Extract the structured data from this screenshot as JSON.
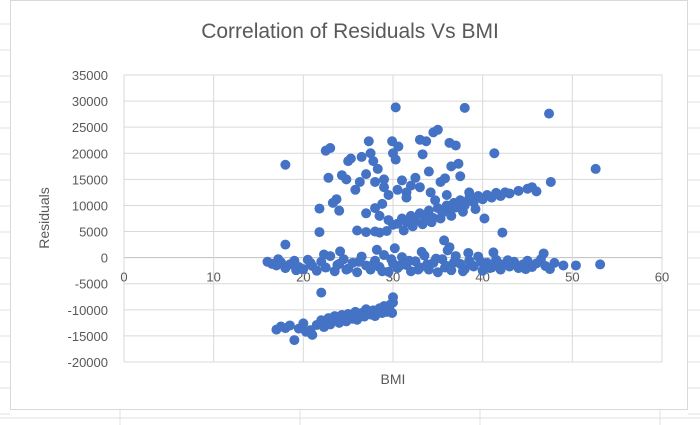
{
  "chart_data": {
    "type": "scatter",
    "title": "Correlation of Residuals Vs BMI",
    "xlabel": "BMI",
    "ylabel": "Residuals",
    "xlim": [
      0,
      60
    ],
    "ylim": [
      -20000,
      35000
    ],
    "x_ticks": [
      "0",
      "10",
      "20",
      "30",
      "40",
      "50",
      "60"
    ],
    "y_ticks": [
      "35000",
      "30000",
      "25000",
      "20000",
      "15000",
      "10000",
      "5000",
      "0",
      "-5000",
      "-10000",
      "-15000",
      "-20000"
    ],
    "grid": true,
    "legend": "none",
    "marker_color": "#4472C4",
    "points": [
      [
        16,
        -800
      ],
      [
        16.5,
        -1200
      ],
      [
        17,
        -1500
      ],
      [
        17.5,
        -900
      ],
      [
        18,
        -2000
      ],
      [
        18.5,
        -1300
      ],
      [
        19,
        -600
      ],
      [
        19.5,
        -1800
      ],
      [
        20,
        -2200
      ],
      [
        20.5,
        -400
      ],
      [
        21,
        -1600
      ],
      [
        21.5,
        -2500
      ],
      [
        22,
        -800
      ],
      [
        22.5,
        -1900
      ],
      [
        23,
        300
      ],
      [
        23.5,
        -2600
      ],
      [
        24,
        -1200
      ],
      [
        24.5,
        -300
      ],
      [
        25,
        -2100
      ],
      [
        25.5,
        -1000
      ],
      [
        26,
        -2800
      ],
      [
        26.5,
        200
      ],
      [
        27,
        -1500
      ],
      [
        27.5,
        -2300
      ],
      [
        28,
        -600
      ],
      [
        28.5,
        -1800
      ],
      [
        29,
        500
      ],
      [
        29.5,
        -2700
      ],
      [
        30,
        -1100
      ],
      [
        30.5,
        -2000
      ],
      [
        31,
        100
      ],
      [
        31.5,
        -1400
      ],
      [
        32,
        -2600
      ],
      [
        32.5,
        -700
      ],
      [
        33,
        -1900
      ],
      [
        33.5,
        400
      ],
      [
        34,
        -2300
      ],
      [
        34.5,
        -1000
      ],
      [
        35,
        -2800
      ],
      [
        35.5,
        -300
      ],
      [
        36,
        -1600
      ],
      [
        36.5,
        -2400
      ],
      [
        37,
        300
      ],
      [
        37.5,
        -1200
      ],
      [
        38,
        -2200
      ],
      [
        38.5,
        -600
      ],
      [
        39,
        -1700
      ],
      [
        39.5,
        200
      ],
      [
        40,
        -2500
      ],
      [
        40.5,
        -1000
      ],
      [
        41,
        -1900
      ],
      [
        41.5,
        -400
      ],
      [
        42,
        -2300
      ],
      [
        42.5,
        -1200
      ],
      [
        43,
        -1700
      ],
      [
        43.5,
        -800
      ],
      [
        44,
        -2000
      ],
      [
        44.5,
        -1300
      ],
      [
        45,
        -600
      ],
      [
        45.5,
        -1800
      ],
      [
        46,
        -1100
      ],
      [
        46.5,
        -300
      ],
      [
        46.8,
        800
      ],
      [
        47,
        -1600
      ],
      [
        47.5,
        -2200
      ],
      [
        48,
        -1000
      ],
      [
        49,
        -1500
      ],
      [
        50.4,
        -1500
      ],
      [
        53.1,
        -1300
      ],
      [
        17.2,
        -300
      ],
      [
        19.2,
        -2400
      ],
      [
        20.8,
        -1000
      ],
      [
        22.3,
        600
      ],
      [
        23.8,
        -1400
      ],
      [
        24.8,
        -2300
      ],
      [
        26.2,
        -800
      ],
      [
        27.8,
        -1300
      ],
      [
        28.8,
        -2600
      ],
      [
        29.8,
        -300
      ],
      [
        30.8,
        -1500
      ],
      [
        31.8,
        -600
      ],
      [
        32.8,
        -2300
      ],
      [
        33.8,
        -1300
      ],
      [
        34.8,
        -200
      ],
      [
        35.8,
        -1900
      ],
      [
        36.8,
        -900
      ],
      [
        37.8,
        -2600
      ],
      [
        38.8,
        -1400
      ],
      [
        39.8,
        -800
      ],
      [
        40.8,
        -2000
      ],
      [
        41.8,
        -1100
      ],
      [
        42.8,
        -500
      ],
      [
        43.8,
        -1500
      ],
      [
        44.8,
        -2200
      ],
      [
        24.1,
        1200
      ],
      [
        28.2,
        1500
      ],
      [
        30.2,
        1800
      ],
      [
        33.2,
        1100
      ],
      [
        36.1,
        1400
      ],
      [
        38.4,
        900
      ],
      [
        41.2,
        1000
      ],
      [
        35.7,
        3300
      ],
      [
        36.3,
        2000
      ],
      [
        22,
        -6700
      ],
      [
        17,
        -13800
      ],
      [
        17.5,
        -13200
      ],
      [
        18,
        -13500
      ],
      [
        18.5,
        -13000
      ],
      [
        19,
        -15800
      ],
      [
        19.5,
        -13600
      ],
      [
        20,
        -12600
      ],
      [
        20.3,
        -14200
      ],
      [
        20.8,
        -13900
      ],
      [
        21,
        -14800
      ],
      [
        21.5,
        -12900
      ],
      [
        22,
        -12000
      ],
      [
        22.3,
        -13300
      ],
      [
        22.8,
        -11600
      ],
      [
        23,
        -12800
      ],
      [
        23.5,
        -11200
      ],
      [
        24,
        -12500
      ],
      [
        24.3,
        -11000
      ],
      [
        24.8,
        -12200
      ],
      [
        25,
        -10800
      ],
      [
        25.5,
        -11700
      ],
      [
        25.8,
        -10400
      ],
      [
        26,
        -11900
      ],
      [
        26.5,
        -10600
      ],
      [
        26.8,
        -11300
      ],
      [
        27,
        -9900
      ],
      [
        27.5,
        -10900
      ],
      [
        27.8,
        -10100
      ],
      [
        28,
        -11200
      ],
      [
        28.5,
        -9700
      ],
      [
        28.8,
        -10600
      ],
      [
        29,
        -9300
      ],
      [
        29.3,
        -10400
      ],
      [
        29.6,
        -9800
      ],
      [
        29.9,
        -10600
      ],
      [
        30,
        -7600
      ],
      [
        30,
        -8600
      ],
      [
        29.7,
        -9000
      ],
      [
        23.2,
        -12100
      ],
      [
        24.6,
        -11800
      ],
      [
        26.3,
        -11100
      ],
      [
        27.3,
        -10300
      ],
      [
        28.3,
        -10100
      ],
      [
        26,
        5200
      ],
      [
        27,
        4900
      ],
      [
        28,
        5000
      ],
      [
        28.5,
        4800
      ],
      [
        29.3,
        5100
      ],
      [
        27,
        8500
      ],
      [
        28,
        9500
      ],
      [
        28.5,
        8000
      ],
      [
        29.5,
        7200
      ],
      [
        30,
        6300
      ],
      [
        30.5,
        6500
      ],
      [
        31,
        7500
      ],
      [
        31.5,
        6800
      ],
      [
        32,
        8000
      ],
      [
        32.5,
        7000
      ],
      [
        33,
        8500
      ],
      [
        33.5,
        7800
      ],
      [
        34,
        9000
      ],
      [
        34.5,
        7600
      ],
      [
        35,
        9500
      ],
      [
        35.5,
        8600
      ],
      [
        36,
        10000
      ],
      [
        36.3,
        9000
      ],
      [
        36.8,
        10500
      ],
      [
        37,
        9600
      ],
      [
        37.5,
        11000
      ],
      [
        38,
        10000
      ],
      [
        38.5,
        11400
      ],
      [
        39,
        10600
      ],
      [
        39.5,
        11800
      ],
      [
        40,
        11200
      ],
      [
        40.5,
        12000
      ],
      [
        41,
        11500
      ],
      [
        41.5,
        12400
      ],
      [
        42,
        11800
      ],
      [
        42.5,
        12500
      ],
      [
        43,
        12300
      ],
      [
        44,
        12800
      ],
      [
        45,
        13200
      ],
      [
        45.5,
        13500
      ],
      [
        46,
        12700
      ],
      [
        31.2,
        5200
      ],
      [
        32.2,
        6000
      ],
      [
        33.3,
        6400
      ],
      [
        34.3,
        6800
      ],
      [
        35.3,
        7500
      ],
      [
        36.5,
        8000
      ],
      [
        37.8,
        8800
      ],
      [
        39.2,
        9300
      ],
      [
        40.2,
        7500
      ],
      [
        42.2,
        4800
      ],
      [
        38.5,
        12500
      ],
      [
        36,
        12000
      ],
      [
        34.7,
        11000
      ],
      [
        18,
        17800
      ],
      [
        18,
        2500
      ],
      [
        21.8,
        9400
      ],
      [
        21.8,
        4900
      ],
      [
        22.5,
        20500
      ],
      [
        23,
        21000
      ],
      [
        22.8,
        15300
      ],
      [
        23.3,
        10500
      ],
      [
        23.7,
        11200
      ],
      [
        24,
        9000
      ],
      [
        24.3,
        15800
      ],
      [
        24.8,
        15000
      ],
      [
        25,
        18500
      ],
      [
        25.3,
        19000
      ],
      [
        25.8,
        13000
      ],
      [
        26.3,
        14500
      ],
      [
        26.5,
        19300
      ],
      [
        27,
        16000
      ],
      [
        27.3,
        22300
      ],
      [
        27.5,
        20000
      ],
      [
        27.8,
        18500
      ],
      [
        28,
        14500
      ],
      [
        28.3,
        17000
      ],
      [
        28.8,
        10300
      ],
      [
        29,
        13500
      ],
      [
        29.5,
        12000
      ],
      [
        29.9,
        22300
      ],
      [
        30,
        20000
      ],
      [
        30.3,
        18800
      ],
      [
        30.3,
        28800
      ],
      [
        30.6,
        21300
      ],
      [
        31,
        14800
      ],
      [
        31.5,
        12500
      ],
      [
        32,
        13800
      ],
      [
        32.5,
        15300
      ],
      [
        33,
        22600
      ],
      [
        33.3,
        19800
      ],
      [
        33.7,
        22300
      ],
      [
        34,
        16500
      ],
      [
        34.5,
        24000
      ],
      [
        35,
        24500
      ],
      [
        35.3,
        14500
      ],
      [
        35.8,
        15200
      ],
      [
        36.3,
        22000
      ],
      [
        36.5,
        17500
      ],
      [
        37,
        21500
      ],
      [
        37.3,
        18000
      ],
      [
        37.5,
        15600
      ],
      [
        38,
        28700
      ],
      [
        41.3,
        20000
      ],
      [
        47.4,
        27600
      ],
      [
        47.6,
        14500
      ],
      [
        52.6,
        17000
      ],
      [
        30.5,
        13000
      ],
      [
        31.5,
        11500
      ],
      [
        33,
        13500
      ],
      [
        34.2,
        12500
      ],
      [
        29,
        15000
      ]
    ]
  }
}
